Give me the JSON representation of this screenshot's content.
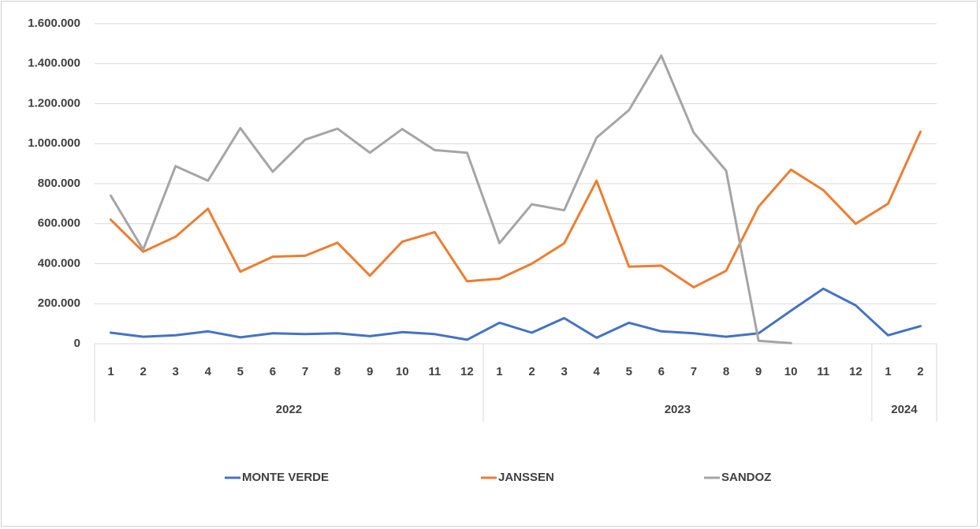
{
  "chart_data": {
    "type": "line",
    "groups": [
      {
        "label": "2022",
        "categories": [
          "1",
          "2",
          "3",
          "4",
          "5",
          "6",
          "7",
          "8",
          "9",
          "10",
          "11",
          "12"
        ]
      },
      {
        "label": "2023",
        "categories": [
          "1",
          "2",
          "3",
          "4",
          "5",
          "6",
          "7",
          "8",
          "9",
          "10",
          "11",
          "12"
        ]
      },
      {
        "label": "2024",
        "categories": [
          "1",
          "2"
        ]
      }
    ],
    "series": [
      {
        "name": "MONTE VERDE",
        "color": "#4472c4",
        "values": [
          55000,
          35000,
          42000,
          62000,
          32000,
          52000,
          48000,
          52000,
          38000,
          58000,
          48000,
          20000,
          105000,
          55000,
          128000,
          30000,
          105000,
          62000,
          52000,
          35000,
          52000,
          165000,
          275000,
          192000,
          42000,
          88000
        ]
      },
      {
        "name": "JANSSEN",
        "color": "#ed7d31",
        "values": [
          620000,
          460000,
          535000,
          675000,
          360000,
          435000,
          440000,
          505000,
          340000,
          510000,
          558000,
          312000,
          325000,
          400000,
          502000,
          815000,
          385000,
          390000,
          282000,
          365000,
          685000,
          870000,
          768000,
          600000,
          700000,
          1060000
        ]
      },
      {
        "name": "SANDOZ",
        "color": "#a5a5a5",
        "values": [
          740000,
          470000,
          888000,
          815000,
          1078000,
          860000,
          1020000,
          1075000,
          955000,
          1073000,
          968000,
          955000,
          503000,
          697000,
          667000,
          1030000,
          1168000,
          1440000,
          1055000,
          865000,
          15000,
          3000,
          null,
          null,
          null,
          null
        ]
      }
    ],
    "ylim": [
      0,
      1600000
    ],
    "yticks": [
      0,
      {
        "value": 200000,
        "label": "200.000"
      },
      {
        "value": 400000,
        "label": "400.000"
      },
      {
        "value": 600000,
        "label": "600.000"
      },
      {
        "value": 800000,
        "label": "800.000"
      },
      {
        "value": 1000000,
        "label": "1.000.000"
      },
      {
        "value": 1200000,
        "label": "1.200.000"
      },
      {
        "value": 1400000,
        "label": "1.400.000"
      },
      {
        "value": 1600000,
        "label": "1.600.000"
      }
    ],
    "grid": true
  }
}
